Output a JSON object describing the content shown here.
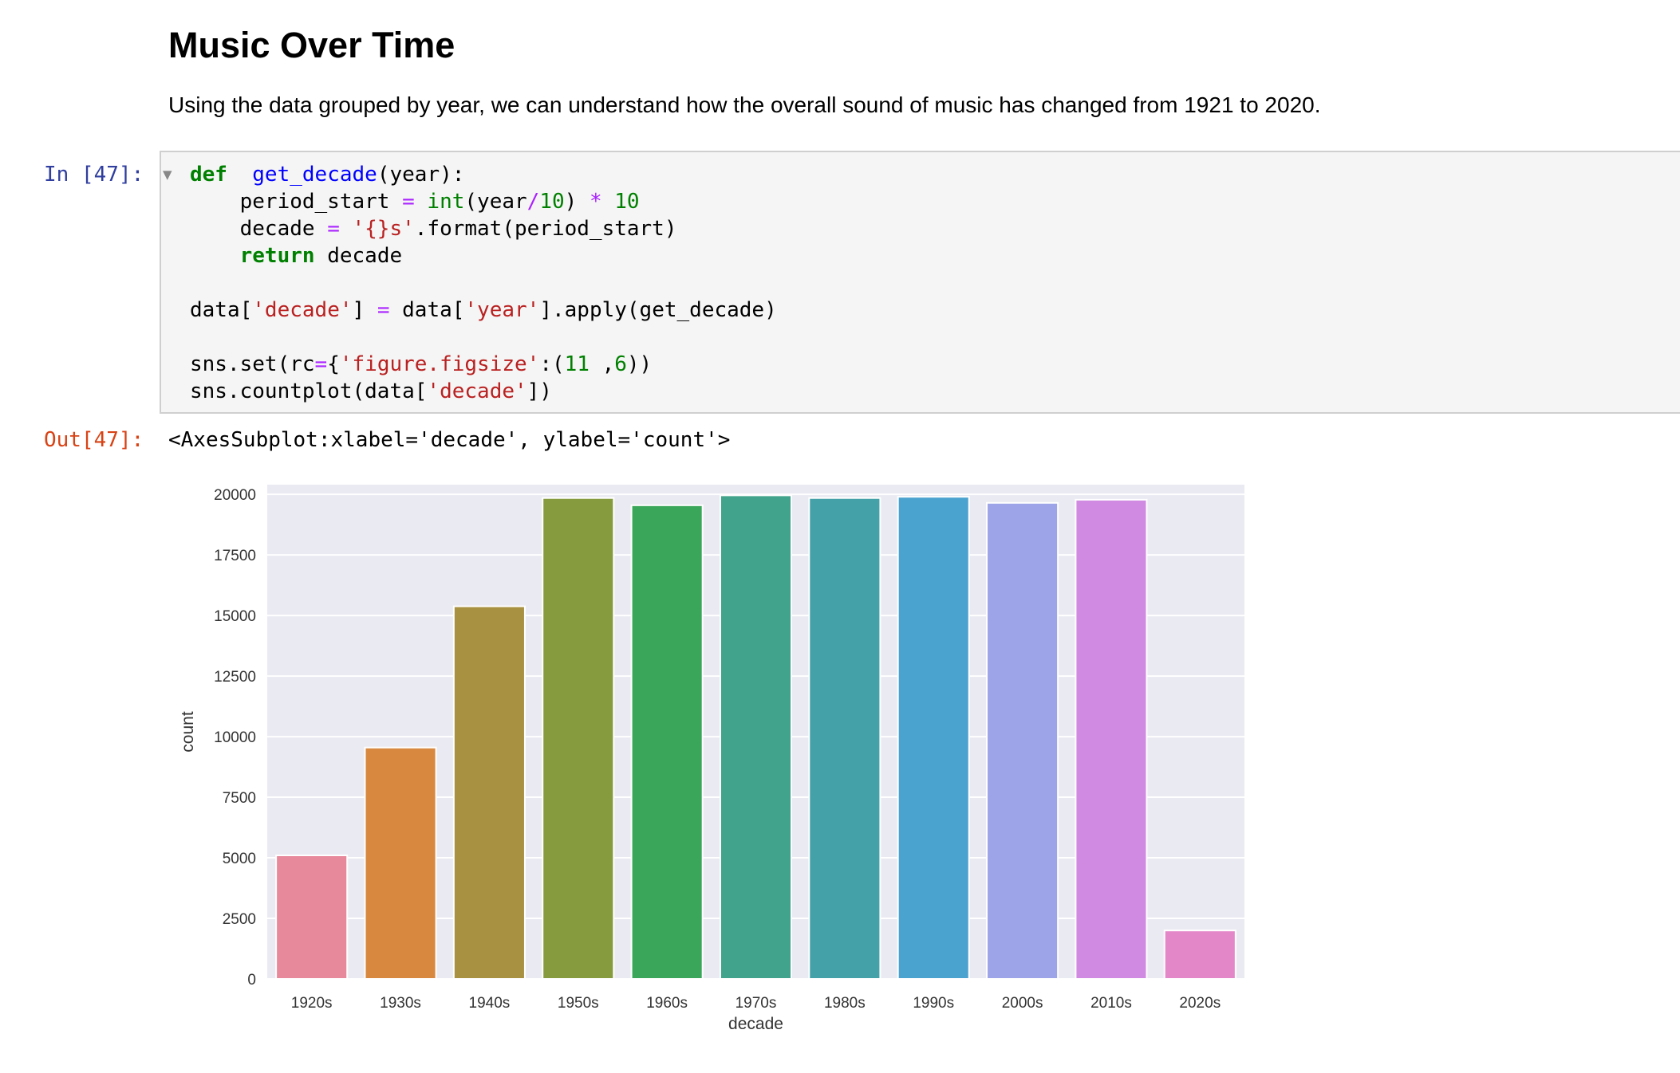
{
  "heading": "Music Over Time",
  "intro": "Using the data grouped by year, we can understand how the overall sound of music has changed from 1921 to 2020.",
  "input_prompt": "In [47]:",
  "output_prompt": "Out[47]:",
  "collapse_glyph": "▼",
  "code_lines": [
    [
      [
        "k",
        "def"
      ],
      [
        "",
        "  "
      ],
      [
        "nf",
        "get_decade"
      ],
      [
        "",
        "(year):"
      ]
    ],
    [
      [
        "",
        "    period_start "
      ],
      [
        "o",
        "="
      ],
      [
        "",
        ""
      ],
      [
        "nb",
        " int"
      ],
      [
        "",
        "(year"
      ],
      [
        "o",
        "/"
      ],
      [
        "m",
        "10"
      ],
      [
        "",
        ") "
      ],
      [
        "o",
        "*"
      ],
      [
        "m",
        " 10"
      ]
    ],
    [
      [
        "",
        "    decade "
      ],
      [
        "o",
        "="
      ],
      [
        "",
        ""
      ],
      [
        "s",
        " '{}s'"
      ],
      [
        "",
        ".format(period_start)"
      ]
    ],
    [
      [
        "",
        "    "
      ],
      [
        "k",
        "return"
      ],
      [
        "",
        " decade"
      ]
    ],
    [
      [
        "",
        ""
      ]
    ],
    [
      [
        "",
        "data["
      ],
      [
        "s",
        "'decade'"
      ],
      [
        "",
        "] "
      ],
      [
        "o",
        "="
      ],
      [
        "",
        ""
      ],
      [
        "",
        " data["
      ],
      [
        "s",
        "'year'"
      ],
      [
        "",
        "].apply(get_decade)"
      ]
    ],
    [
      [
        "",
        ""
      ]
    ],
    [
      [
        "",
        "sns.set(rc"
      ],
      [
        "o",
        "="
      ],
      [
        "",
        "{"
      ],
      [
        "s",
        "'figure.figsize'"
      ],
      [
        "",
        ":("
      ],
      [
        "m",
        "11"
      ],
      [
        "",
        " ,"
      ],
      [
        "m",
        "6"
      ],
      [
        "",
        "))"
      ]
    ],
    [
      [
        "",
        "sns.countplot(data["
      ],
      [
        "s",
        "'decade'"
      ],
      [
        "",
        "])"
      ]
    ]
  ],
  "output_text": "<AxesSubplot:xlabel='decade', ylabel='count'>",
  "chart_data": {
    "type": "bar",
    "categories": [
      "1920s",
      "1930s",
      "1940s",
      "1950s",
      "1960s",
      "1970s",
      "1980s",
      "1990s",
      "2000s",
      "2010s",
      "2020s"
    ],
    "values": [
      5100,
      9550,
      15380,
      19850,
      19550,
      19960,
      19850,
      19900,
      19650,
      19780,
      2000
    ],
    "colors": [
      "#e8889b",
      "#d8883f",
      "#a89140",
      "#859b3e",
      "#3aa659",
      "#41a38b",
      "#43a1a7",
      "#4aa2cf",
      "#9ea4e8",
      "#d08ae2",
      "#e487c9"
    ],
    "xlabel": "decade",
    "ylabel": "count",
    "ylim": [
      0,
      20400
    ],
    "yticks": [
      0,
      2500,
      5000,
      7500,
      10000,
      12500,
      15000,
      17500,
      20000
    ],
    "grid": true,
    "background": "#eaeaf2",
    "title": ""
  }
}
